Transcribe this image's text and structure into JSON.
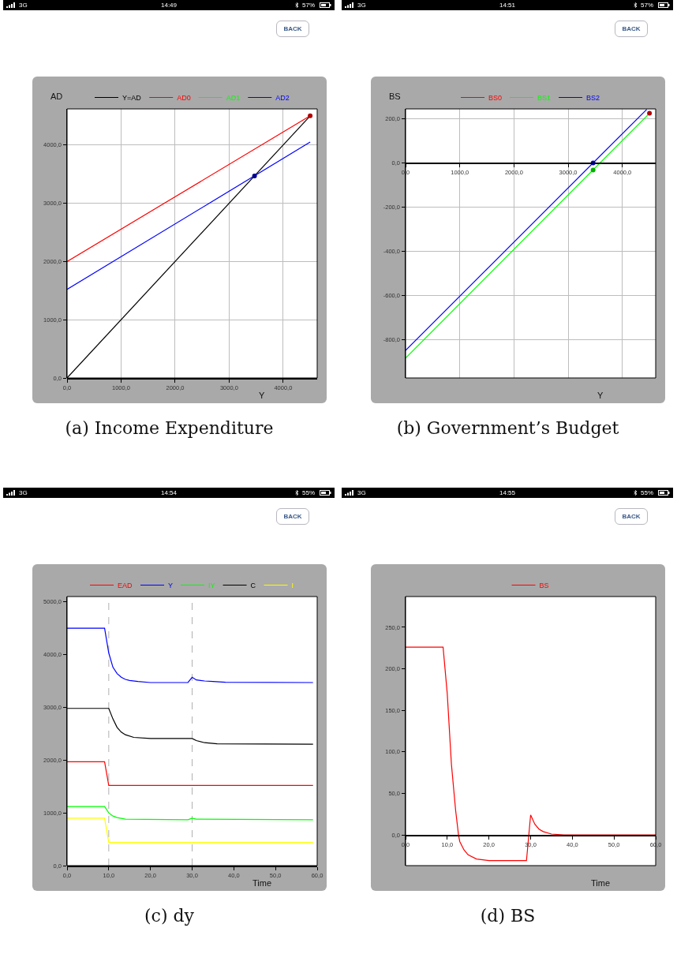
{
  "chart_data": [
    {
      "type": "line",
      "ylabel": "AD",
      "xlabel": "Y",
      "legend": "top",
      "grid": true,
      "annotations": [
        "14:49",
        "3G",
        "57%",
        "BACK",
        "(a) Income Expenditure"
      ],
      "xlim": [
        0,
        4630
      ],
      "ylim": [
        0,
        4620
      ],
      "xticks": [
        {
          "value": 0,
          "label": "0,0"
        },
        {
          "value": 1000,
          "label": "1000,0"
        },
        {
          "value": 2000,
          "label": "2000,0"
        },
        {
          "value": 3000,
          "label": "3000,0"
        },
        {
          "value": 4000,
          "label": "4000,0"
        }
      ],
      "yticks": [
        {
          "value": 0,
          "label": "0,0"
        },
        {
          "value": 1000,
          "label": "1000,0"
        },
        {
          "value": 2000,
          "label": "2000,0"
        },
        {
          "value": 3000,
          "label": "3000,0"
        },
        {
          "value": 4000,
          "label": "4000,0"
        }
      ],
      "series": [
        {
          "name": "Y=AD",
          "color": "#000000",
          "x": [
            0,
            4500
          ],
          "values": [
            0,
            4500
          ]
        },
        {
          "name": "AD0",
          "color": "#ff0000",
          "x": [
            0,
            4500
          ],
          "values": [
            2000,
            4500
          ]
        },
        {
          "name": "AD1",
          "color": "#00ff00",
          "values": [
            null
          ]
        },
        {
          "name": "AD2",
          "color": "#0000ff",
          "x": [
            0,
            4500
          ],
          "values": [
            1520,
            4050
          ]
        },
        {
          "type": "scatter",
          "color": "#b00000",
          "x": [
            4500
          ],
          "values": [
            4500
          ]
        },
        {
          "type": "scatter",
          "color": "#00008b",
          "x": [
            3470
          ],
          "values": [
            3470
          ]
        }
      ]
    },
    {
      "type": "line",
      "ylabel": "BS",
      "xlabel": "Y",
      "legend": "top",
      "grid": true,
      "annotations": [
        "14:51",
        "3G",
        "57%",
        "BACK",
        "(b) Government’s Budget"
      ],
      "xlim": [
        0,
        4615
      ],
      "ylim": [
        -975,
        245
      ],
      "xticks": [
        {
          "value": 0,
          "label": "0,0"
        },
        {
          "value": 1000,
          "label": "1000,0"
        },
        {
          "value": 2000,
          "label": "2000,0"
        },
        {
          "value": 3000,
          "label": "3000,0"
        },
        {
          "value": 4000,
          "label": "4000,0"
        }
      ],
      "yticks": [
        {
          "value": -800,
          "label": "-800,0"
        },
        {
          "value": -600,
          "label": "-600,0"
        },
        {
          "value": -400,
          "label": "-400,0"
        },
        {
          "value": -200,
          "label": "-200,0"
        },
        {
          "value": 0,
          "label": "0,0"
        },
        {
          "value": 200,
          "label": "200,0"
        }
      ],
      "series": [
        {
          "name": "BS0",
          "color": "#ff0000",
          "values": [
            null
          ]
        },
        {
          "name": "BS1",
          "color": "#00ff00",
          "x": [
            0,
            4500
          ],
          "values": [
            -885,
            225
          ]
        },
        {
          "name": "BS2",
          "color": "#0000ff",
          "x": [
            0,
            4450
          ],
          "values": [
            -850,
            243
          ]
        },
        {
          "type": "scatter",
          "color": "#b00000",
          "x": [
            4500
          ],
          "values": [
            225
          ]
        },
        {
          "type": "scatter",
          "color": "#00b000",
          "x": [
            3460
          ],
          "values": [
            -32
          ]
        },
        {
          "type": "scatter",
          "color": "#0000cc",
          "x": [
            3460
          ],
          "values": [
            0
          ]
        }
      ]
    },
    {
      "type": "line",
      "xlabel": "Time",
      "legend": "top",
      "grid": false,
      "annotations": [
        "14:54",
        "3G",
        "55%",
        "BACK",
        "(c) dy"
      ],
      "xlim": [
        0,
        60
      ],
      "ylim": [
        0,
        5100
      ],
      "xticks": [
        {
          "value": 0,
          "label": "0,0"
        },
        {
          "value": 10,
          "label": "10,0"
        },
        {
          "value": 20,
          "label": "20,0"
        },
        {
          "value": 30,
          "label": "30,0"
        },
        {
          "value": 40,
          "label": "40,0"
        },
        {
          "value": 50,
          "label": "50,0"
        },
        {
          "value": 60,
          "label": "60,0"
        }
      ],
      "yticks": [
        {
          "value": 0,
          "label": "0,0"
        },
        {
          "value": 1000,
          "label": "1000,0"
        },
        {
          "value": 2000,
          "label": "2000,0"
        },
        {
          "value": 3000,
          "label": "3000,0"
        },
        {
          "value": 4000,
          "label": "4000,0"
        },
        {
          "value": 5000,
          "label": "5000,0"
        }
      ],
      "ref_lines": [
        {
          "axis": "x",
          "value": 10,
          "color": "#b0b0b0",
          "line_style": "dashed"
        },
        {
          "axis": "x",
          "value": 30,
          "color": "#b0b0b0",
          "line_style": "dashed"
        }
      ],
      "series": [
        {
          "name": "EAD",
          "color": "#ff0000",
          "x": [
            0,
            9,
            10,
            59
          ],
          "values": [
            1970,
            1970,
            1520,
            1520
          ]
        },
        {
          "name": "Y",
          "color": "#0000ff",
          "x": [
            0,
            9,
            10,
            11,
            12,
            13,
            14,
            15,
            17,
            20,
            29,
            30,
            31,
            33,
            35,
            38,
            59
          ],
          "values": [
            4500,
            4500,
            4030,
            3760,
            3640,
            3570,
            3530,
            3510,
            3490,
            3470,
            3470,
            3570,
            3520,
            3500,
            3490,
            3475,
            3470
          ]
        },
        {
          "name": "IY",
          "color": "#00ff00",
          "x": [
            0,
            9,
            10,
            11,
            12,
            14,
            29,
            30,
            31,
            59
          ],
          "values": [
            1120,
            1120,
            1000,
            940,
            910,
            880,
            870,
            900,
            880,
            870
          ]
        },
        {
          "name": "C",
          "color": "#000000",
          "x": [
            0,
            10,
            11,
            12,
            13,
            14,
            16,
            20,
            30,
            31,
            33,
            36,
            59
          ],
          "values": [
            2980,
            2980,
            2780,
            2620,
            2530,
            2480,
            2430,
            2410,
            2410,
            2370,
            2330,
            2310,
            2300
          ]
        },
        {
          "name": "I",
          "color": "#ffff00",
          "x": [
            0,
            9,
            10,
            59
          ],
          "values": [
            900,
            900,
            440,
            440
          ]
        }
      ]
    },
    {
      "type": "line",
      "xlabel": "Time",
      "legend": "top",
      "grid": false,
      "annotations": [
        "14:55",
        "3G",
        "55%",
        "BACK",
        "(d) BS"
      ],
      "xlim": [
        0,
        60
      ],
      "ylim": [
        -37,
        287
      ],
      "xticks": [
        {
          "value": 0,
          "label": "0,0"
        },
        {
          "value": 10,
          "label": "10,0"
        },
        {
          "value": 20,
          "label": "20,0"
        },
        {
          "value": 30,
          "label": "30,0"
        },
        {
          "value": 40,
          "label": "40,0"
        },
        {
          "value": 50,
          "label": "50,0"
        },
        {
          "value": 60,
          "label": "60,0"
        }
      ],
      "yticks": [
        {
          "value": 0,
          "label": "0,0"
        },
        {
          "value": 50,
          "label": "50,0"
        },
        {
          "value": 100,
          "label": "100,0"
        },
        {
          "value": 150,
          "label": "150,0"
        },
        {
          "value": 200,
          "label": "200,0"
        },
        {
          "value": 250,
          "label": "250,0"
        }
      ],
      "series": [
        {
          "name": "BS",
          "color": "#ff0000",
          "x": [
            0,
            9,
            10,
            11,
            12,
            12.7,
            13,
            14,
            15,
            17,
            20,
            29,
            30,
            31,
            32,
            33,
            35,
            38,
            60
          ],
          "values": [
            226,
            226,
            170,
            85,
            30,
            0,
            -8,
            -18,
            -24,
            -29,
            -31,
            -31,
            24,
            13,
            7,
            4,
            1,
            0,
            0
          ]
        }
      ]
    }
  ]
}
